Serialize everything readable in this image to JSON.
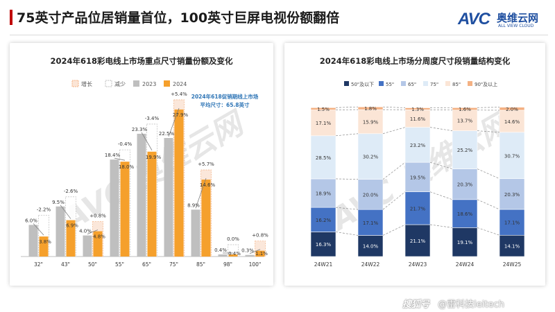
{
  "header": {
    "title": "75英寸产品位居销量首位，100英寸巨屏电视份额翻倍",
    "logo_text": "AVC",
    "logo_cn": "奥维云网",
    "logo_en": "ALL VIEW CLOUD"
  },
  "footer": {
    "brand": "搜狐号",
    "account": "@雷科技leitech"
  },
  "watermark": "AVC 奥维云网",
  "colors": {
    "gray": "#bfbfbf",
    "orange": "#f5a02c",
    "increase_fill": "#fbe5d6",
    "increase_border": "#f4b183",
    "decrease_border": "#bfbfbf",
    "note": "#2e75b6",
    "brand": "#1f4fa0",
    "stack": [
      "#1f3864",
      "#4472c4",
      "#b4c7e7",
      "#deebf7",
      "#fbe5d6",
      "#f4b183",
      "#ed7d31"
    ]
  },
  "chart_data": [
    {
      "type": "bar",
      "title": "2024年618彩电线上市场重点尺寸销量份额及变化",
      "categories": [
        "32\"",
        "43\"",
        "50\"",
        "55\"",
        "65\"",
        "75\"",
        "85\"",
        "98\"",
        "100\""
      ],
      "series": [
        {
          "name": "2023",
          "values": [
            6.0,
            9.5,
            4.0,
            18.4,
            23.3,
            22.5,
            8.9,
            0.4,
            0.3
          ]
        },
        {
          "name": "2024",
          "values": [
            3.8,
            6.9,
            4.8,
            18.0,
            19.9,
            27.9,
            14.6,
            0.4,
            1.1
          ]
        }
      ],
      "value_labels": {
        "2023": [
          "6.0%",
          "9.5%",
          "4.0%",
          "18.4%",
          "23.3%",
          "22.5%",
          "8.9%",
          "0.4%",
          "0.3%"
        ],
        "2024": [
          "3.8%",
          "6.9%",
          "4.8%",
          "18.0%",
          "19.9%",
          "27.9%",
          "14.6%",
          "0.4%",
          "1.1%"
        ]
      },
      "changes": [
        -2.2,
        -2.6,
        0.8,
        -0.4,
        -3.4,
        5.4,
        5.7,
        0.0,
        0.8
      ],
      "change_labels": [
        "-2.2%",
        "-2.6%",
        "+0.8%",
        "-0.4%",
        "-3.4%",
        "+5.4%",
        "+5.7%",
        "0.0%",
        "+0.8%"
      ],
      "legend": [
        "增长",
        "减少",
        "2023",
        "2024"
      ],
      "annotation": [
        "2024年618促销期线上市场",
        "平均尺寸：65.8英寸"
      ],
      "ylim": [
        0,
        30
      ]
    },
    {
      "type": "bar",
      "stacked": true,
      "title": "2024年618彩电线上市场分周度尺寸段销量结构变化",
      "categories": [
        "24W21",
        "24W22",
        "24W23",
        "24W24",
        "24W25"
      ],
      "series": [
        {
          "name": "50\"及以下",
          "values": [
            16.3,
            14.0,
            21.1,
            19.1,
            14.1
          ]
        },
        {
          "name": "55\"",
          "values": [
            16.2,
            17.1,
            21.7,
            18.6,
            17.1
          ]
        },
        {
          "name": "65\"",
          "values": [
            18.9,
            20.0,
            19.5,
            20.3,
            20.3
          ]
        },
        {
          "name": "75\"",
          "values": [
            28.5,
            30.2,
            23.2,
            25.2,
            30.7
          ]
        },
        {
          "name": "85\"",
          "values": [
            17.1,
            15.9,
            11.6,
            13.7,
            14.6
          ]
        },
        {
          "name": "90\"及以上",
          "values": [
            1.5,
            1.8,
            1.3,
            1.6,
            2.0
          ]
        }
      ],
      "value_labels": [
        [
          "16.3%",
          "14.0%",
          "21.1%",
          "19.1%",
          "14.1%"
        ],
        [
          "16.2%",
          "17.1%",
          "21.7%",
          "18.6%",
          "17.1%"
        ],
        [
          "18.9%",
          "20.0%",
          "19.5%",
          "20.3%",
          "20.3%"
        ],
        [
          "28.5%",
          "30.2%",
          "23.2%",
          "25.2%",
          "30.7%"
        ],
        [
          "17.1%",
          "15.9%",
          "11.6%",
          "13.7%",
          "14.6%"
        ],
        [
          "1.5%",
          "1.8%",
          "1.3%",
          "1.6%",
          "2.0%"
        ]
      ],
      "ylim": [
        0,
        100
      ]
    }
  ]
}
